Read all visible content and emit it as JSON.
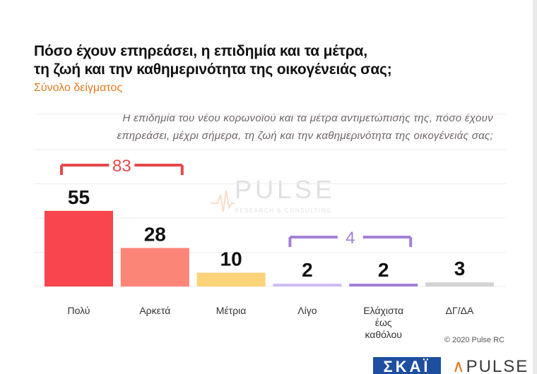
{
  "title_lines": [
    "Πόσο έχουν επηρεάσει, η επιδημία και τα μέτρα,",
    "τη ζωή και την καθημερινότητα της οικογένειάς σας;"
  ],
  "subtitle": "Σύνολο δείγματος",
  "question_lines": [
    "Η επιδημία του νέου κορωνοϊού και τα μέτρα αντιμετώπισής της, πόσο έχουν",
    "επηρεάσει, μέχρι σήμερα, τη ζωή και την καθημερινότητα της οικογένειάς σας;"
  ],
  "watermark": {
    "name": "PULSE",
    "tagline": "RESEARCH & CONSULTING"
  },
  "copyright": "© 2020 Pulse RC",
  "footer": {
    "skai_logo": "ΣΚΑΪ",
    "pulse_logo": "PULSE"
  },
  "colors": {
    "subtitle": "#e07a22",
    "bracket_high": "#e8474b",
    "bracket_low": "#a57fd8",
    "skai_blue": "#1e4ea0"
  },
  "chart_data": {
    "type": "bar",
    "categories": [
      "Πολύ",
      "Αρκετά",
      "Μέτρια",
      "Λίγο",
      "Ελάχιστα έως καθόλου",
      "ΔΓ/ΔΑ"
    ],
    "category_lines": [
      [
        "Πολύ"
      ],
      [
        "Αρκετά"
      ],
      [
        "Μέτρια"
      ],
      [
        "Λίγο"
      ],
      [
        "Ελάχιστα",
        "έως",
        "καθόλου"
      ],
      [
        "ΔΓ/ΔΑ"
      ]
    ],
    "values": [
      55,
      28,
      10,
      2,
      2,
      3
    ],
    "value_labels": [
      "55",
      "28",
      "10",
      "2",
      "2",
      "3"
    ],
    "bar_colors": [
      "#f9454d",
      "#fb8577",
      "#fdd37a",
      "#cdbdf1",
      "#a57fd8",
      "#d3d3d3"
    ],
    "ylim": [
      0,
      100
    ],
    "grid": true,
    "annotations": [
      {
        "label": "83",
        "from": 0,
        "to": 1,
        "color": "#e8474b"
      },
      {
        "label": "4",
        "from": 3,
        "to": 4,
        "color": "#a57fd8"
      }
    ]
  }
}
